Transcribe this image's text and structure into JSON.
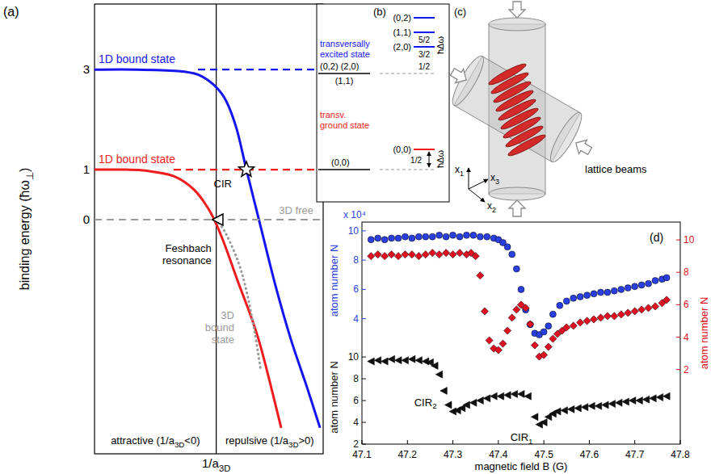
{
  "chart_data": [
    {
      "type": "line",
      "panel": "(a)",
      "x_label": "1/a3D",
      "y_label": "binding energy (ħω⊥)",
      "xlim": [
        -1.07,
        0.94
      ],
      "ylim": [
        -4.68,
        4.31
      ],
      "yticks": [
        0,
        1,
        3
      ],
      "tick_labels": "y",
      "series": [
        {
          "name": "1D bound state",
          "color": "#1515f0",
          "line_style": "solid",
          "x": [
            -1.07,
            -0.7,
            -0.338,
            -0.161,
            -0.019,
            0.088,
            0.18,
            0.265,
            0.372,
            0.514,
            0.656,
            0.798,
            0.912
          ],
          "values": [
            3,
            3,
            2.97,
            2.9,
            2.69,
            2.37,
            1.81,
            1.0,
            0.03,
            -1.26,
            -2.39,
            -3.35,
            -4.16
          ]
        },
        {
          "name": "1D bound state",
          "color": "#ee1c1c",
          "line_style": "solid",
          "x": [
            -1.07,
            -0.8,
            -0.623,
            -0.374,
            -0.196,
            -0.054,
            0.052,
            0.194,
            0.372,
            0.571
          ],
          "values": [
            1,
            1,
            0.98,
            0.87,
            0.6,
            0.16,
            -0.37,
            -1.26,
            -2.39,
            -4.16
          ]
        },
        {
          "name": "3D bound state",
          "color": "#9a9a9a",
          "line_style": "dotted",
          "x": [
            0,
            0.088,
            0.194,
            0.265,
            0.336,
            0.393
          ],
          "values": [
            0,
            -0.29,
            -0.85,
            -1.42,
            -2.23,
            -3.03
          ]
        },
        {
          "name": "transversally excited state",
          "color": "#1515f0",
          "line_style": "dashed",
          "x": [
            -0.161,
            0.94
          ],
          "values": [
            3,
            3
          ]
        },
        {
          "name": "transv. ground state",
          "color": "#ee1c1c",
          "line_style": "dashed",
          "x": [
            -0.374,
            0.94
          ],
          "values": [
            1,
            1
          ]
        },
        {
          "name": "3D free",
          "color": "#9a9a9a",
          "line_style": "dashed",
          "x": [
            -1.07,
            0.94
          ],
          "values": [
            0,
            0
          ]
        }
      ],
      "annotations": [
        {
          "text": "Feshbach resonance",
          "x": 0,
          "y": 0,
          "marker": "triangle"
        },
        {
          "text": "CIR",
          "x": 0.265,
          "y": 1,
          "marker": "star"
        }
      ],
      "regions": [
        {
          "text": "attractive (1/a3D<0)",
          "x": [
            -1.07,
            0
          ]
        },
        {
          "text": "repulsive (1/a3D>0)",
          "x": [
            0,
            0.94
          ]
        }
      ]
    },
    {
      "type": "scatter",
      "panel": "(d)",
      "x_label": "magnetic field B (G)",
      "xlim": [
        47.1,
        47.8
      ],
      "xticks": [
        47.1,
        47.2,
        47.3,
        47.4,
        47.5,
        47.6,
        47.7,
        47.8
      ],
      "y_label": "atom number N",
      "y_multiplier": "x 10⁴",
      "ylim": [
        2.6,
        10.6
      ],
      "yticks": [
        4,
        6,
        8,
        10
      ],
      "y2_label": "atom number N",
      "y2lim": [
        -2.6,
        11.1
      ],
      "y2ticks": [
        2,
        4,
        6,
        8,
        10
      ],
      "y3_label": "atom number N",
      "y3lim": [
        2,
        10.6
      ],
      "y3ticks": [
        2,
        4,
        6,
        8,
        10
      ],
      "series": [
        {
          "color": "#2a3fe0",
          "marker": "circle",
          "axis": "y",
          "x": [
            47.12,
            47.135,
            47.15,
            47.165,
            47.18,
            47.195,
            47.21,
            47.225,
            47.24,
            47.255,
            47.27,
            47.285,
            47.3,
            47.315,
            47.33,
            47.345,
            47.36,
            47.375,
            47.39,
            47.4,
            47.41,
            47.42,
            47.43,
            47.44,
            47.45,
            47.46,
            47.47,
            47.48,
            47.49,
            47.5,
            47.51,
            47.52,
            47.535,
            47.55,
            47.565,
            47.58,
            47.595,
            47.61,
            47.625,
            47.64,
            47.655,
            47.67,
            47.685,
            47.7,
            47.715,
            47.73,
            47.745,
            47.76,
            47.77
          ],
          "values": [
            9.4,
            9.5,
            9.4,
            9.5,
            9.5,
            9.6,
            9.5,
            9.6,
            9.6,
            9.6,
            9.7,
            9.6,
            9.7,
            9.6,
            9.7,
            9.7,
            9.6,
            9.6,
            9.5,
            9.4,
            9.2,
            8.9,
            8.4,
            7.4,
            6.0,
            4.6,
            3.6,
            3.0,
            2.9,
            3.1,
            3.5,
            4.3,
            4.9,
            5.2,
            5.4,
            5.5,
            5.6,
            5.7,
            5.8,
            5.8,
            5.9,
            6.0,
            6.1,
            6.2,
            6.3,
            6.4,
            6.6,
            6.7,
            6.8
          ]
        },
        {
          "color": "#e01020",
          "marker": "diamond",
          "axis": "y2",
          "x": [
            47.12,
            47.135,
            47.15,
            47.165,
            47.18,
            47.195,
            47.21,
            47.225,
            47.24,
            47.255,
            47.27,
            47.285,
            47.3,
            47.315,
            47.33,
            47.34,
            47.35,
            47.36,
            47.37,
            47.38,
            47.39,
            47.4,
            47.41,
            47.42,
            47.43,
            47.44,
            47.45,
            47.46,
            47.47,
            47.48,
            47.49,
            47.5,
            47.51,
            47.52,
            47.53,
            47.54,
            47.55,
            47.565,
            47.58,
            47.595,
            47.61,
            47.625,
            47.64,
            47.655,
            47.67,
            47.685,
            47.7,
            47.715,
            47.73,
            47.745,
            47.76,
            47.77
          ],
          "values": [
            9.0,
            9.1,
            9.0,
            9.1,
            9.0,
            9.1,
            9.1,
            9.0,
            9.1,
            9.2,
            9.1,
            9.2,
            9.1,
            9.2,
            9.1,
            9.2,
            9.0,
            7.8,
            5.6,
            3.8,
            3.3,
            3.2,
            3.6,
            4.4,
            5.2,
            5.7,
            6.0,
            5.8,
            4.8,
            3.5,
            2.8,
            2.9,
            3.4,
            3.9,
            4.2,
            4.4,
            4.6,
            4.7,
            4.9,
            5.0,
            5.1,
            5.2,
            5.3,
            5.3,
            5.4,
            5.5,
            5.6,
            5.7,
            5.8,
            5.9,
            6.1,
            6.3
          ]
        },
        {
          "color": "#111111",
          "marker": "triangle",
          "axis": "y3",
          "x": [
            47.12,
            47.135,
            47.15,
            47.165,
            47.18,
            47.195,
            47.21,
            47.225,
            47.24,
            47.25,
            47.26,
            47.27,
            47.28,
            47.29,
            47.3,
            47.31,
            47.32,
            47.33,
            47.345,
            47.36,
            47.375,
            47.39,
            47.405,
            47.42,
            47.435,
            47.45,
            47.465,
            47.48,
            47.49,
            47.5,
            47.51,
            47.52,
            47.53,
            47.545,
            47.56,
            47.575,
            47.59,
            47.605,
            47.62,
            47.635,
            47.65,
            47.665,
            47.68,
            47.695,
            47.71,
            47.725,
            47.74,
            47.755,
            47.77
          ],
          "values": [
            9.6,
            9.7,
            9.6,
            9.8,
            9.7,
            9.7,
            9.8,
            9.7,
            9.6,
            9.5,
            9.2,
            8.4,
            6.9,
            5.6,
            5.0,
            5.1,
            5.3,
            5.6,
            5.8,
            6.0,
            6.2,
            6.4,
            6.4,
            6.5,
            6.6,
            6.6,
            6.4,
            4.5,
            3.8,
            4.0,
            4.5,
            4.8,
            5.0,
            5.1,
            5.2,
            5.3,
            5.4,
            5.5,
            5.5,
            5.6,
            5.7,
            5.8,
            5.9,
            6.0,
            6.0,
            6.1,
            6.2,
            6.3,
            6.4
          ]
        }
      ],
      "annotations": [
        {
          "text": "CIR2",
          "x": 47.3,
          "y": 5.0,
          "axis": "y3"
        },
        {
          "text": "CIR1",
          "x": 47.49,
          "y": 3.8,
          "axis": "y3"
        }
      ]
    }
  ],
  "level_diagram": {
    "panel": "(b)",
    "unit": "ħΔω",
    "degenerate_excited": [
      "(0,2) (2,0)",
      "(1,1)"
    ],
    "degenerate_ground": "(0,0)",
    "split_excited": [
      {
        "label": "(0,2)"
      },
      {
        "label": "(1,1)",
        "offset": "5/2"
      },
      {
        "label": "(2,0)",
        "offset": "3/2"
      }
    ],
    "excited_offset": "1/2",
    "split_ground": {
      "label": "(0,0)",
      "offset": "1/2"
    }
  },
  "lattice_sketch": {
    "panel": "(c)",
    "label": "lattice beams",
    "axes": [
      "x1",
      "x2",
      "x3"
    ]
  }
}
